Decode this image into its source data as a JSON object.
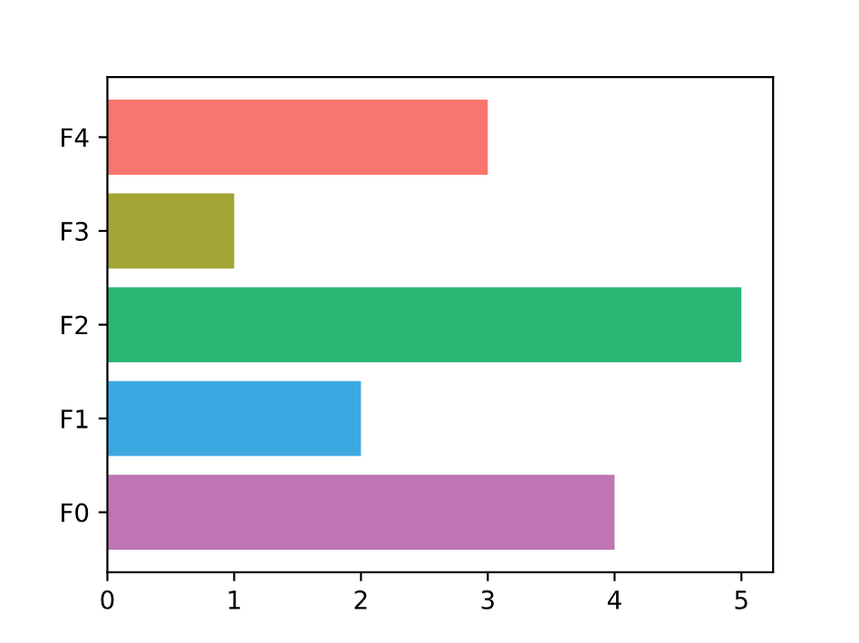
{
  "chart_data": {
    "type": "bar",
    "orientation": "horizontal",
    "categories": [
      "F4",
      "F3",
      "F2",
      "F1",
      "F0"
    ],
    "values": [
      3,
      1,
      5,
      2,
      4
    ],
    "colors": [
      "#f8766d",
      "#a3a535",
      "#2ab674",
      "#3ca9e2",
      "#bf75b3"
    ],
    "xlim": [
      0,
      5.25
    ],
    "xticks": [
      0,
      1,
      2,
      3,
      4,
      5
    ],
    "grid": false
  }
}
